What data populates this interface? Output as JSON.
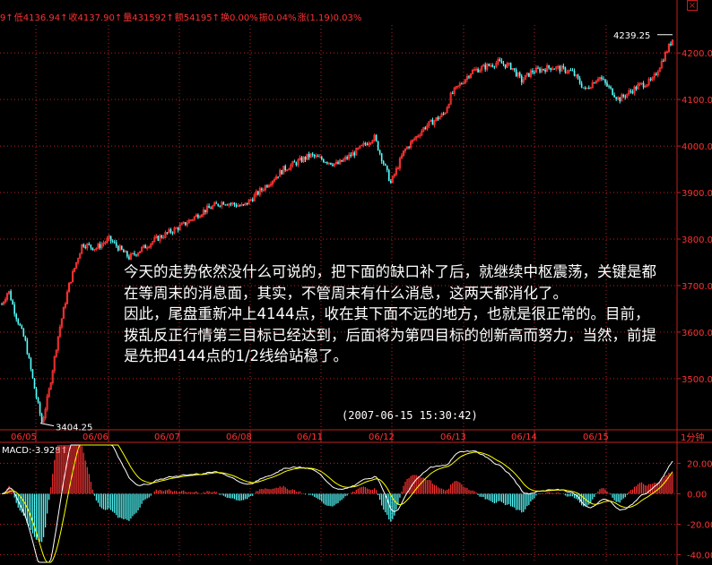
{
  "header": {
    "items": [
      {
        "text": "9↑",
        "color": "#ff3232"
      },
      {
        "text": "低4136.94↑",
        "color": "#ff3232"
      },
      {
        "text": "收4137.90↑",
        "color": "#ff3232"
      },
      {
        "text": "量431592↑",
        "color": "#ff3232"
      },
      {
        "text": "额54195↑",
        "color": "#ff3232"
      },
      {
        "text": "换0.00%",
        "color": "#ff3232"
      },
      {
        "text": "振0.04%",
        "color": "#ff3232"
      },
      {
        "text": "涨(1.19)0.03%",
        "color": "#ff3232"
      }
    ]
  },
  "annotations": {
    "high_label": "4239.25",
    "low_label": "3404.25",
    "timestamp": "(2007-06-15 15:30:42)",
    "paragraph1": "今天的走势依然没什么可说的，把下面的缺口补了后，就继续中枢震荡，关键是都在等周末的消息面，其实，不管周末有什么消息，这两天都消化了。",
    "paragraph2": "因此，尾盘重新冲上4144点，收在其下面不远的地方，也就是很正常的。目前，拨乱反正行情第三目标已经达到，后面将为第四目标的创新高而努力，当然，前提是先把4144点的1/2线给站稳了。"
  },
  "period_label": "1分钟",
  "macd_label": "MACD:-3.928↑",
  "colors": {
    "up": "#ff3232",
    "down": "#54ffff",
    "grid": "#c02020",
    "axis": "#c02020",
    "macd_line": "#ffffff",
    "signal_line": "#ffff00"
  },
  "chart_data": {
    "type": "candlestick",
    "x_ticks": [
      "06/05",
      "06/06",
      "06/07",
      "06/08",
      "06/11",
      "06/12",
      "06/13",
      "06/14",
      "06/15"
    ],
    "y_ticks": [
      "3500.00",
      "3600.00",
      "3700.00",
      "3800.00",
      "3900.00",
      "4000.00",
      "4100.00",
      "4200.00"
    ],
    "ylim": [
      3390,
      4260
    ],
    "anchors": [
      {
        "pos": 0.0,
        "value": 3660
      },
      {
        "pos": 0.01,
        "value": 3690
      },
      {
        "pos": 0.02,
        "value": 3640
      },
      {
        "pos": 0.035,
        "value": 3580
      },
      {
        "pos": 0.05,
        "value": 3470
      },
      {
        "pos": 0.06,
        "value": 3404
      },
      {
        "pos": 0.07,
        "value": 3470
      },
      {
        "pos": 0.085,
        "value": 3600
      },
      {
        "pos": 0.1,
        "value": 3700
      },
      {
        "pos": 0.12,
        "value": 3790
      },
      {
        "pos": 0.14,
        "value": 3780
      },
      {
        "pos": 0.16,
        "value": 3800
      },
      {
        "pos": 0.19,
        "value": 3760
      },
      {
        "pos": 0.23,
        "value": 3800
      },
      {
        "pos": 0.27,
        "value": 3830
      },
      {
        "pos": 0.3,
        "value": 3860
      },
      {
        "pos": 0.33,
        "value": 3880
      },
      {
        "pos": 0.36,
        "value": 3870
      },
      {
        "pos": 0.39,
        "value": 3910
      },
      {
        "pos": 0.42,
        "value": 3950
      },
      {
        "pos": 0.46,
        "value": 3980
      },
      {
        "pos": 0.5,
        "value": 3960
      },
      {
        "pos": 0.53,
        "value": 3990
      },
      {
        "pos": 0.555,
        "value": 4020
      },
      {
        "pos": 0.57,
        "value": 3960
      },
      {
        "pos": 0.58,
        "value": 3920
      },
      {
        "pos": 0.6,
        "value": 3990
      },
      {
        "pos": 0.63,
        "value": 4040
      },
      {
        "pos": 0.66,
        "value": 4070
      },
      {
        "pos": 0.67,
        "value": 4110
      },
      {
        "pos": 0.7,
        "value": 4160
      },
      {
        "pos": 0.74,
        "value": 4180
      },
      {
        "pos": 0.76,
        "value": 4170
      },
      {
        "pos": 0.775,
        "value": 4140
      },
      {
        "pos": 0.79,
        "value": 4160
      },
      {
        "pos": 0.82,
        "value": 4170
      },
      {
        "pos": 0.85,
        "value": 4160
      },
      {
        "pos": 0.87,
        "value": 4120
      },
      {
        "pos": 0.89,
        "value": 4150
      },
      {
        "pos": 0.92,
        "value": 4100
      },
      {
        "pos": 0.95,
        "value": 4130
      },
      {
        "pos": 0.97,
        "value": 4140
      },
      {
        "pos": 0.99,
        "value": 4200
      },
      {
        "pos": 1.0,
        "value": 4230
      }
    ],
    "high": 4239.25,
    "low": 3404.25,
    "macd": {
      "y_ticks": [
        "20.00",
        "0.00",
        "-20.00",
        "-40.00"
      ],
      "ylim": [
        -45,
        32
      ]
    }
  }
}
